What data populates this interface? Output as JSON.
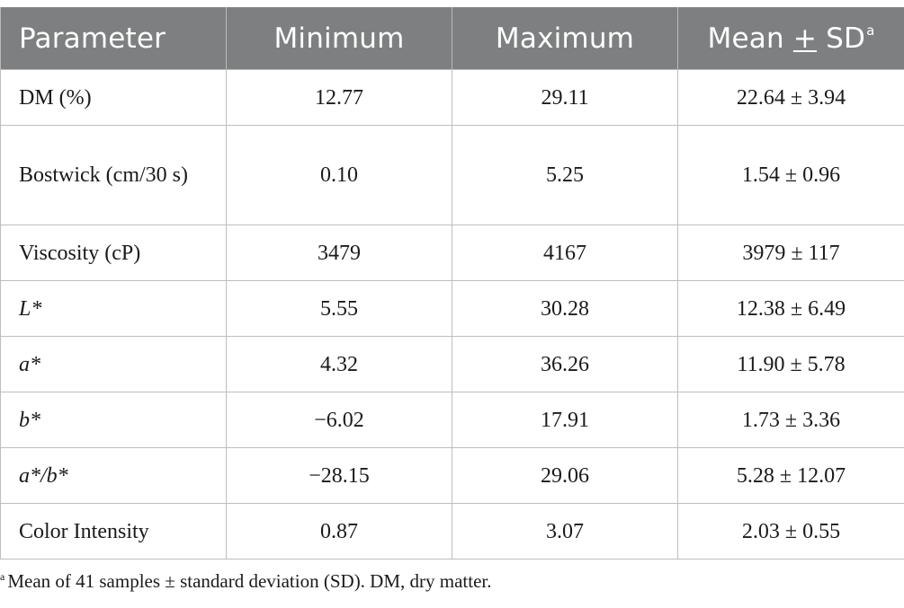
{
  "table": {
    "headers": {
      "parameter": "Parameter",
      "minimum": "Minimum",
      "maximum": "Maximum",
      "mean_prefix": "Mean ",
      "mean_pm": "+",
      "mean_suffix": " SD",
      "mean_marker": "a"
    },
    "rows": [
      {
        "parameter": "DM (%)",
        "minimum": "12.77",
        "maximum": "29.11",
        "mean_sd": "22.64 ± 3.94"
      },
      {
        "parameter": "Bostwick (cm/30 s)",
        "minimum": "0.10",
        "maximum": "5.25",
        "mean_sd": "1.54 ± 0.96"
      },
      {
        "parameter": "Viscosity (cP)",
        "minimum": "3479",
        "maximum": "4167",
        "mean_sd": "3979 ± 117"
      },
      {
        "parameter": "L*",
        "minimum": "5.55",
        "maximum": "30.28",
        "mean_sd": "12.38 ± 6.49"
      },
      {
        "parameter": "a*",
        "minimum": "4.32",
        "maximum": "36.26",
        "mean_sd": "11.90 ± 5.78"
      },
      {
        "parameter": "b*",
        "minimum": "−6.02",
        "maximum": "17.91",
        "mean_sd": "1.73 ± 3.36"
      },
      {
        "parameter": "a*/b*",
        "minimum": "−28.15",
        "maximum": "29.06",
        "mean_sd": "5.28 ± 12.07"
      },
      {
        "parameter": "Color Intensity",
        "minimum": "0.87",
        "maximum": "3.07",
        "mean_sd": "2.03 ± 0.55"
      }
    ]
  },
  "footnote": {
    "marker": "a",
    "text": "Mean of 41 samples ± standard deviation (SD). DM, dry matter."
  },
  "colors": {
    "header_background": "#7d7f80",
    "header_text": "#ffffff",
    "grid_lines": "#bdbdbd"
  }
}
